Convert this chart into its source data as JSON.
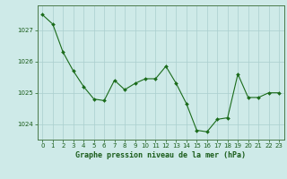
{
  "x": [
    0,
    1,
    2,
    3,
    4,
    5,
    6,
    7,
    8,
    9,
    10,
    11,
    12,
    13,
    14,
    15,
    16,
    17,
    18,
    19,
    20,
    21,
    22,
    23
  ],
  "y": [
    1027.5,
    1027.2,
    1026.3,
    1025.7,
    1025.2,
    1024.8,
    1024.75,
    1025.4,
    1025.1,
    1025.3,
    1025.45,
    1025.45,
    1025.85,
    1025.3,
    1024.65,
    1023.8,
    1023.75,
    1024.15,
    1024.2,
    1025.6,
    1024.85,
    1024.85,
    1025.0,
    1025.0
  ],
  "line_color": "#1a6b1a",
  "marker_color": "#1a6b1a",
  "bg_color": "#ceeae8",
  "grid_color": "#aacece",
  "border_color": "#4a7a4a",
  "xlabel": "Graphe pression niveau de la mer (hPa)",
  "xlabel_color": "#1a5c1a",
  "tick_color": "#1a5c1a",
  "ylim": [
    1023.5,
    1027.8
  ],
  "yticks": [
    1024,
    1025,
    1026,
    1027
  ],
  "xlim": [
    -0.5,
    23.5
  ],
  "tick_fontsize": 5.0,
  "ylabel_fontsize": 5.5,
  "xlabel_fontsize": 6.0
}
